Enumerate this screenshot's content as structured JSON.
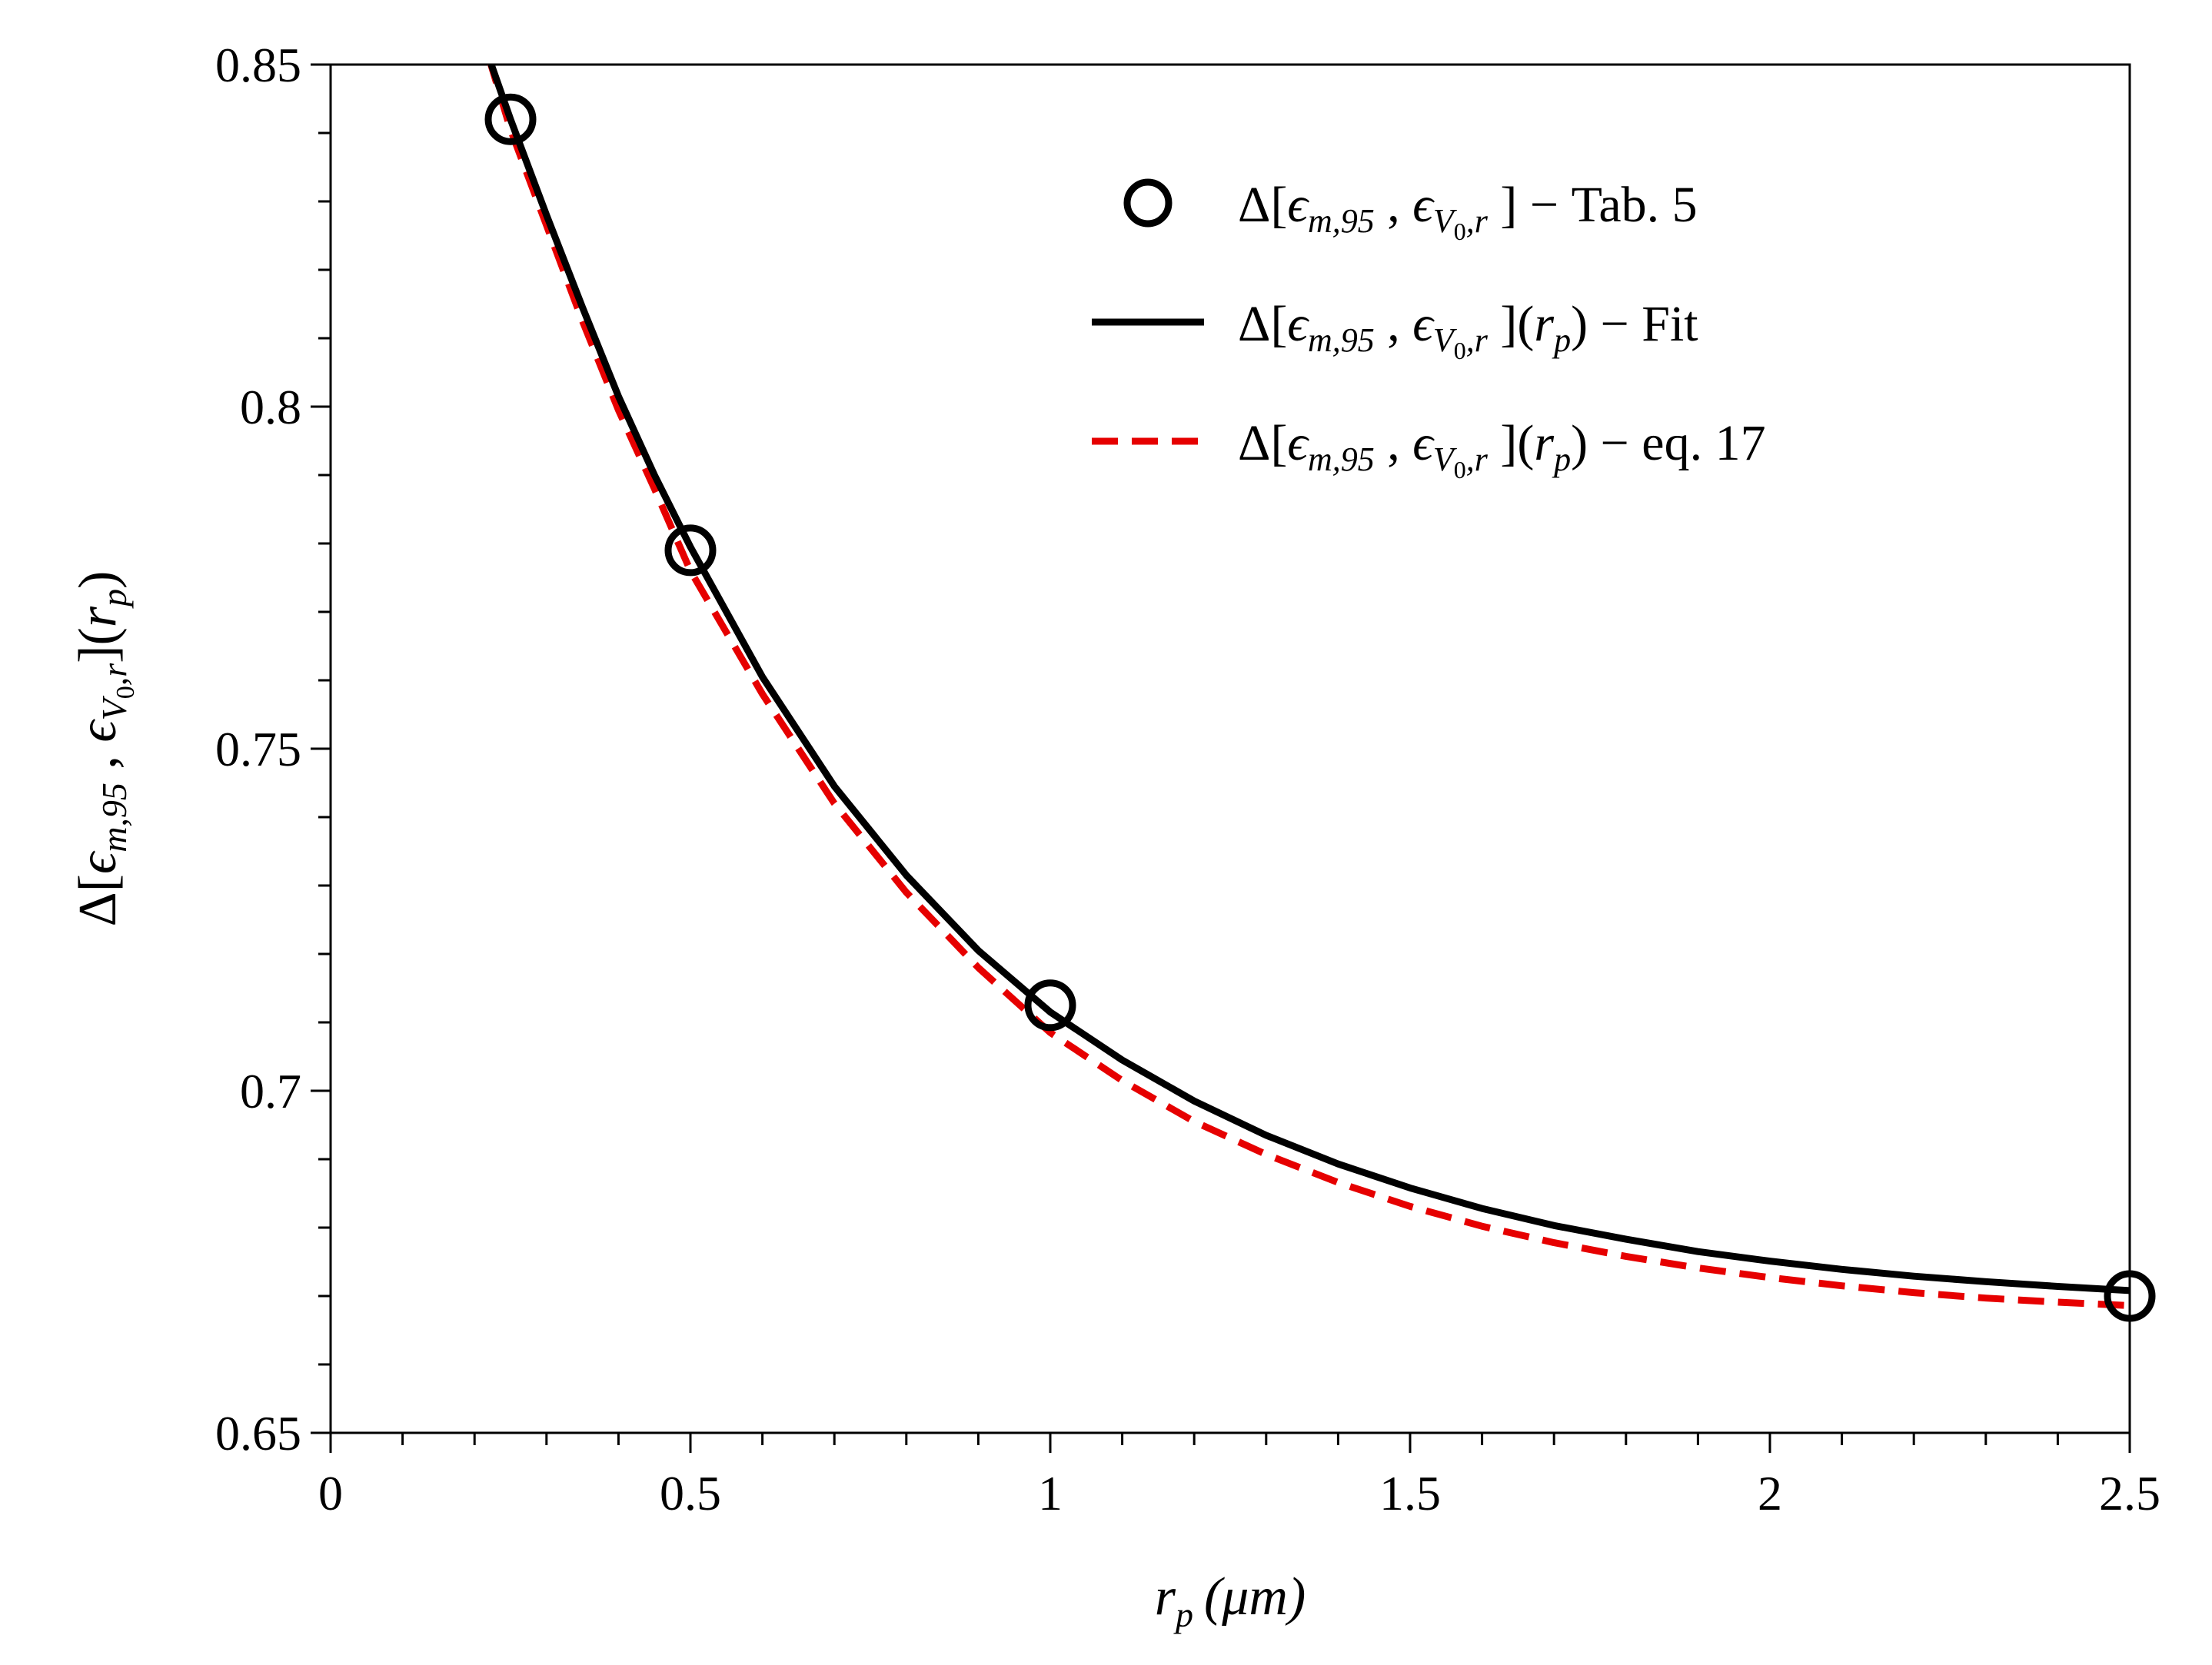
{
  "chart_data": {
    "type": "line",
    "title": "",
    "xlabel": {
      "r": "r",
      "p": "p",
      "unit": "(μm)"
    },
    "ylabel": {
      "delta": "Δ[",
      "eps1": "ϵ",
      "sub1": "m,95",
      "comma": " , ",
      "eps2": "ϵ",
      "sub2a": "V",
      "sub2b": "0",
      "sub2c": ",r",
      "close": "](",
      "r": "r",
      "p": "p",
      "end": ")"
    },
    "xlim": [
      0,
      2.5
    ],
    "ylim": [
      0.65,
      0.85
    ],
    "xticks": [
      0,
      0.5,
      1,
      1.5,
      2,
      2.5
    ],
    "xtick_labels": [
      "0",
      "0.5",
      "1",
      "1.5",
      "2",
      "2.5"
    ],
    "yticks": [
      0.65,
      0.7,
      0.75,
      0.8,
      0.85
    ],
    "ytick_labels": [
      "0.65",
      "0.7",
      "0.75",
      "0.8",
      "0.85"
    ],
    "x_minor_step": 0.1,
    "y_minor_step": 0.01,
    "grid": false,
    "legend_position": "top-right",
    "series": [
      {
        "name": "Tab. 5",
        "style": "markers",
        "marker": "circle",
        "color": "#000000",
        "x": [
          0.25,
          0.5,
          1.0,
          2.5
        ],
        "y": [
          0.842,
          0.779,
          0.7125,
          0.67
        ]
      },
      {
        "name": "Fit",
        "style": "solid",
        "color": "#000000",
        "x": [
          0.22,
          0.25,
          0.3,
          0.35,
          0.4,
          0.45,
          0.5,
          0.6,
          0.7,
          0.8,
          0.9,
          1.0,
          1.1,
          1.2,
          1.3,
          1.4,
          1.5,
          1.6,
          1.7,
          1.8,
          1.9,
          2.0,
          2.1,
          2.2,
          2.3,
          2.4,
          2.5
        ],
        "y": [
          0.851,
          0.842,
          0.828,
          0.8145,
          0.8015,
          0.79,
          0.7795,
          0.7605,
          0.7445,
          0.7315,
          0.7205,
          0.7115,
          0.7045,
          0.6985,
          0.6935,
          0.6893,
          0.6858,
          0.6828,
          0.6803,
          0.6783,
          0.6765,
          0.6751,
          0.6739,
          0.6729,
          0.6721,
          0.6714,
          0.6708
        ]
      },
      {
        "name": "eq. 17",
        "style": "dashed",
        "color": "#e60000",
        "x": [
          0.22,
          0.25,
          0.3,
          0.35,
          0.4,
          0.45,
          0.5,
          0.6,
          0.7,
          0.8,
          0.9,
          1.0,
          1.1,
          1.2,
          1.3,
          1.4,
          1.5,
          1.6,
          1.7,
          1.8,
          1.9,
          2.0,
          2.1,
          2.2,
          2.3,
          2.4,
          2.5
        ],
        "y": [
          0.851,
          0.8405,
          0.8265,
          0.8125,
          0.7995,
          0.788,
          0.776,
          0.758,
          0.742,
          0.729,
          0.718,
          0.7085,
          0.7015,
          0.6955,
          0.6907,
          0.6866,
          0.6831,
          0.6802,
          0.6778,
          0.6758,
          0.6741,
          0.6727,
          0.6715,
          0.6705,
          0.6697,
          0.6691,
          0.6686
        ]
      }
    ],
    "legend": [
      {
        "name": "Tab. 5",
        "d": "Δ[",
        "e1": "ϵ",
        "s1": "m,95",
        "c": " , ",
        "e2": "ϵ",
        "s2a": "V",
        "s2b": "0",
        "s2c": ",r",
        "close": " ]",
        "rp_open": "",
        "r": "",
        "p": "",
        "rp_close": "",
        "tail": " − Tab. 5"
      },
      {
        "name": "Fit",
        "d": "Δ[",
        "e1": "ϵ",
        "s1": "m,95",
        "c": " , ",
        "e2": "ϵ",
        "s2a": "V",
        "s2b": "0",
        "s2c": ",r",
        "close": " ](",
        "rp_open": "",
        "r": "r",
        "p": "p",
        "rp_close": ")",
        "tail": " −  Fit"
      },
      {
        "name": "eq. 17",
        "d": "Δ[",
        "e1": "ϵ",
        "s1": "m,95",
        "c": " , ",
        "e2": "ϵ",
        "s2a": "V",
        "s2b": "0",
        "s2c": ",r",
        "close": " ](",
        "rp_open": "",
        "r": "r",
        "p": "p",
        "rp_close": ")",
        "tail": " −  eq. 17"
      }
    ]
  }
}
